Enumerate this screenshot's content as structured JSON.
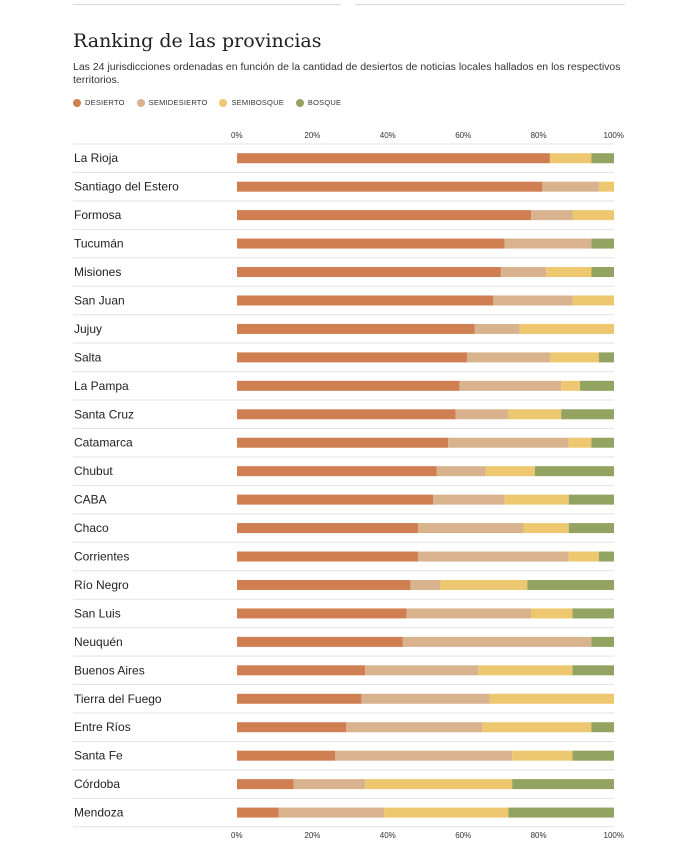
{
  "header": {
    "title": "Ranking de las provincias",
    "subtitle": "Las 24 jurisdicciones ordenadas en función de la cantidad de desiertos de noticias locales hallados en los respectivos territorios."
  },
  "chart_data": {
    "type": "bar",
    "orientation": "horizontal",
    "stacked": true,
    "normalized": true,
    "title": "Ranking de las provincias",
    "xlabel": "",
    "ylabel": "",
    "xlim": [
      0,
      100
    ],
    "x_ticks": [
      "0%",
      "20%",
      "40%",
      "60%",
      "80%",
      "100%"
    ],
    "tick_values": [
      0,
      20,
      40,
      60,
      80,
      100
    ],
    "legend_position": "top-left",
    "categories": [
      "La Rioja",
      "Santiago del Estero",
      "Formosa",
      "Tucumán",
      "Misiones",
      "San Juan",
      "Jujuy",
      "Salta",
      "La Pampa",
      "Santa Cruz",
      "Catamarca",
      "Chubut",
      "CABA",
      "Chaco",
      "Corrientes",
      "Río Negro",
      "San Luis",
      "Neuquén",
      "Buenos Aires",
      "Tierra del Fuego",
      "Entre Ríos",
      "Santa Fe",
      "Córdoba",
      "Mendoza"
    ],
    "series": [
      {
        "name": "DESIERTO",
        "color": "#cf7f52",
        "values": [
          83,
          81,
          78,
          71,
          70,
          68,
          63,
          61,
          59,
          58,
          56,
          53,
          52,
          48,
          48,
          46,
          45,
          44,
          34,
          33,
          29,
          26,
          15,
          11
        ]
      },
      {
        "name": "SEMIDESIERTO",
        "color": "#d8b38e",
        "values": [
          0,
          15,
          11,
          23,
          12,
          21,
          12,
          22,
          27,
          14,
          32,
          13,
          19,
          28,
          40,
          8,
          33,
          50,
          30,
          34,
          36,
          47,
          19,
          28
        ]
      },
      {
        "name": "SEMIBOSQUE",
        "color": "#edc870",
        "values": [
          11,
          4,
          11,
          0,
          12,
          11,
          25,
          13,
          5,
          14,
          6,
          13,
          17,
          12,
          8,
          23,
          11,
          0,
          25,
          33,
          29,
          16,
          39,
          33
        ]
      },
      {
        "name": "BOSQUE",
        "color": "#93a362",
        "values": [
          6,
          0,
          0,
          6,
          6,
          0,
          0,
          4,
          9,
          14,
          6,
          21,
          12,
          12,
          4,
          23,
          11,
          6,
          11,
          0,
          6,
          11,
          27,
          28
        ]
      }
    ]
  }
}
